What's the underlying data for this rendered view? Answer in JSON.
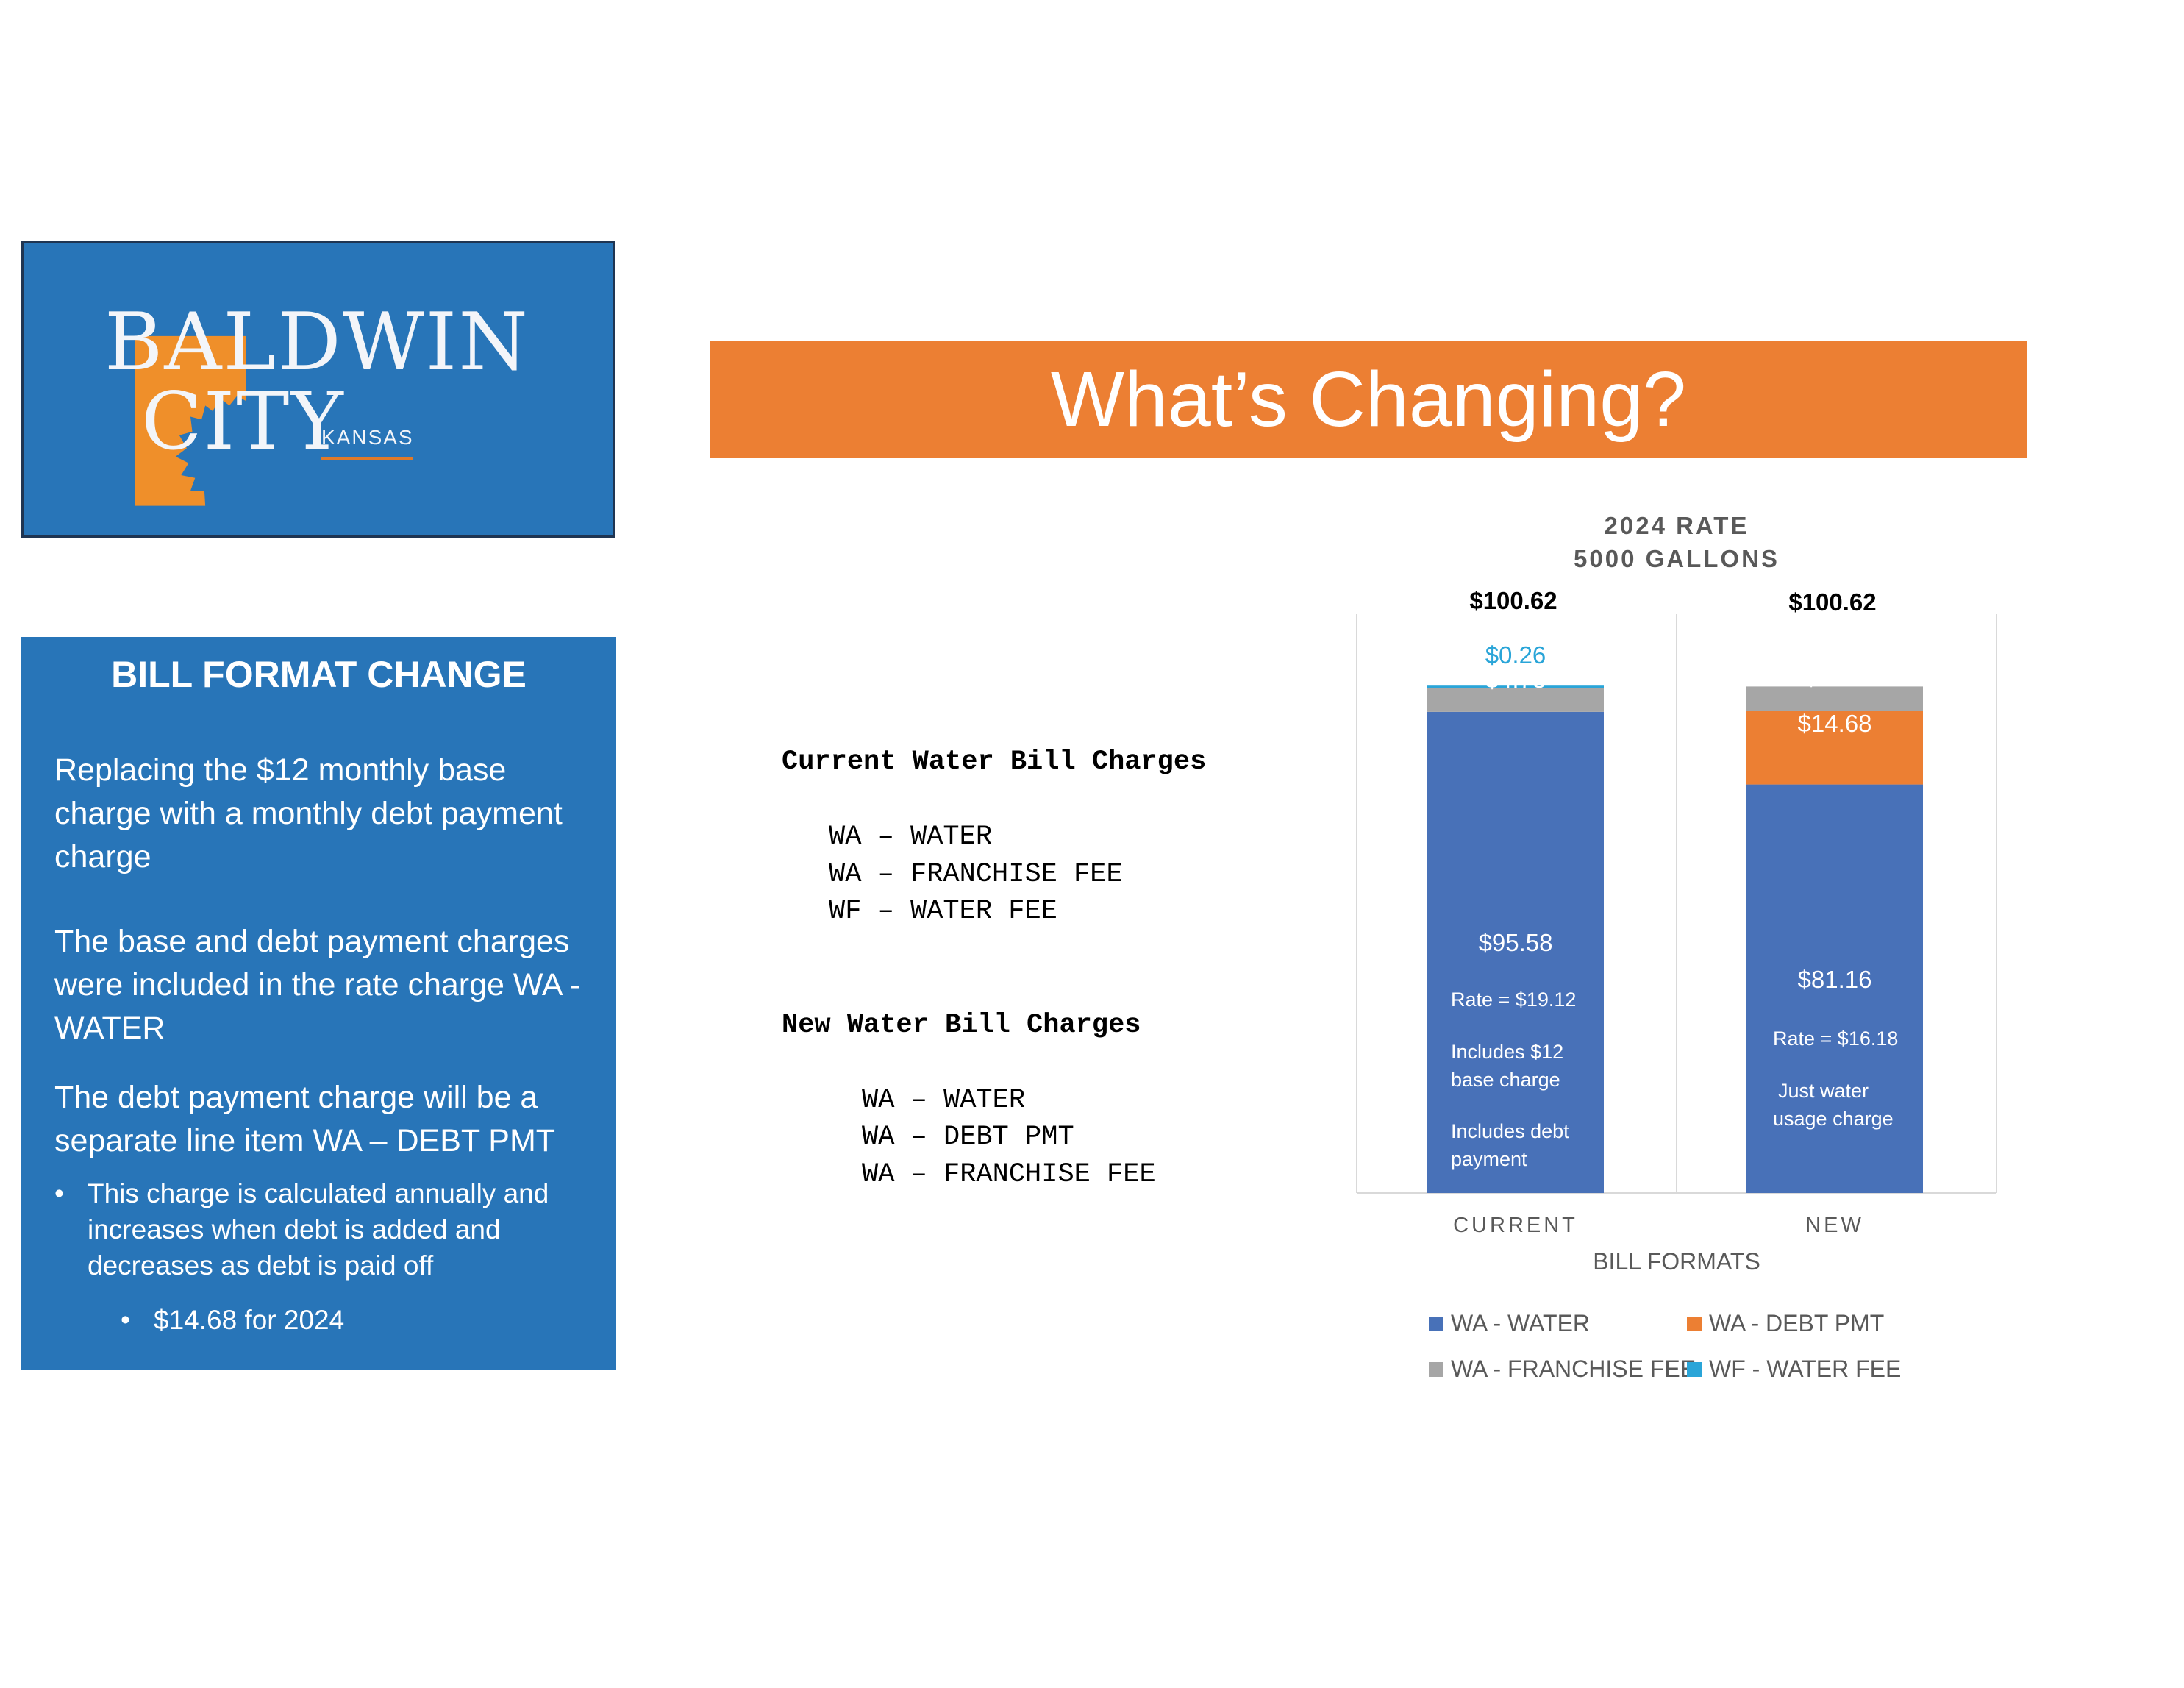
{
  "logo": {
    "word1": "BALDWIN",
    "word2": "CITY",
    "state": "KANSAS",
    "colors": {
      "background": "#2875b8",
      "leaf": "#ef8f2a"
    }
  },
  "title": "What’s Changing?",
  "info": {
    "heading": "BILL FORMAT CHANGE",
    "para1": "Replacing the $12 monthly base charge with a monthly debt payment charge",
    "para2": "The base and debt payment charges were included in the rate charge WA - WATER",
    "para3": "The debt payment charge will be a separate line item WA – DEBT PMT",
    "bullet1": "This charge is calculated annually and increases when debt is added and decreases as debt is paid off",
    "bullet2": "$14.68 for 2024",
    "bullet_char": "•"
  },
  "charges": {
    "current_heading": "Current Water Bill Charges",
    "current_items": [
      "WA – WATER",
      "WA – FRANCHISE FEE",
      "WF – WATER FEE"
    ],
    "new_heading": "New Water Bill Charges",
    "new_items": [
      "WA – WATER",
      "WA – DEBT PMT",
      "WA – FRANCHISE FEE"
    ]
  },
  "chart_data": {
    "type": "bar",
    "stacked": true,
    "title": "2024 RATE",
    "subtitle": "5000 GALLONS",
    "xlabel": "BILL FORMATS",
    "ylabel": "",
    "categories": [
      "CURRENT",
      "NEW"
    ],
    "totals": [
      "$100.62",
      "$100.62"
    ],
    "ylim": [
      0,
      115
    ],
    "grid": false,
    "legend_position": "bottom",
    "series": [
      {
        "name": "WA - WATER",
        "values": [
          95.58,
          81.16
        ],
        "labels": [
          "$95.58",
          "$81.16"
        ],
        "color": "#4871b8"
      },
      {
        "name": "WA - DEBT PMT",
        "values": [
          0,
          14.68
        ],
        "labels": [
          "",
          "$14.68"
        ],
        "color": "#ec7f33"
      },
      {
        "name": "WA - FRANCHISE FEE",
        "values": [
          4.78,
          4.78
        ],
        "labels": [
          "$4.78",
          "$4.78"
        ],
        "color": "#a6a6a6"
      },
      {
        "name": "WF - WATER FEE",
        "values": [
          0.26,
          0
        ],
        "labels": [
          "$0.26",
          ""
        ],
        "color": "#2aa5d8"
      }
    ],
    "annotations": [
      {
        "category": "CURRENT",
        "lines": [
          "Rate = $19.12",
          "Includes $12",
          "base charge",
          "Includes debt",
          "payment"
        ]
      },
      {
        "category": "NEW",
        "lines": [
          "Rate = $16.18",
          "Just water",
          "usage charge"
        ]
      }
    ]
  }
}
